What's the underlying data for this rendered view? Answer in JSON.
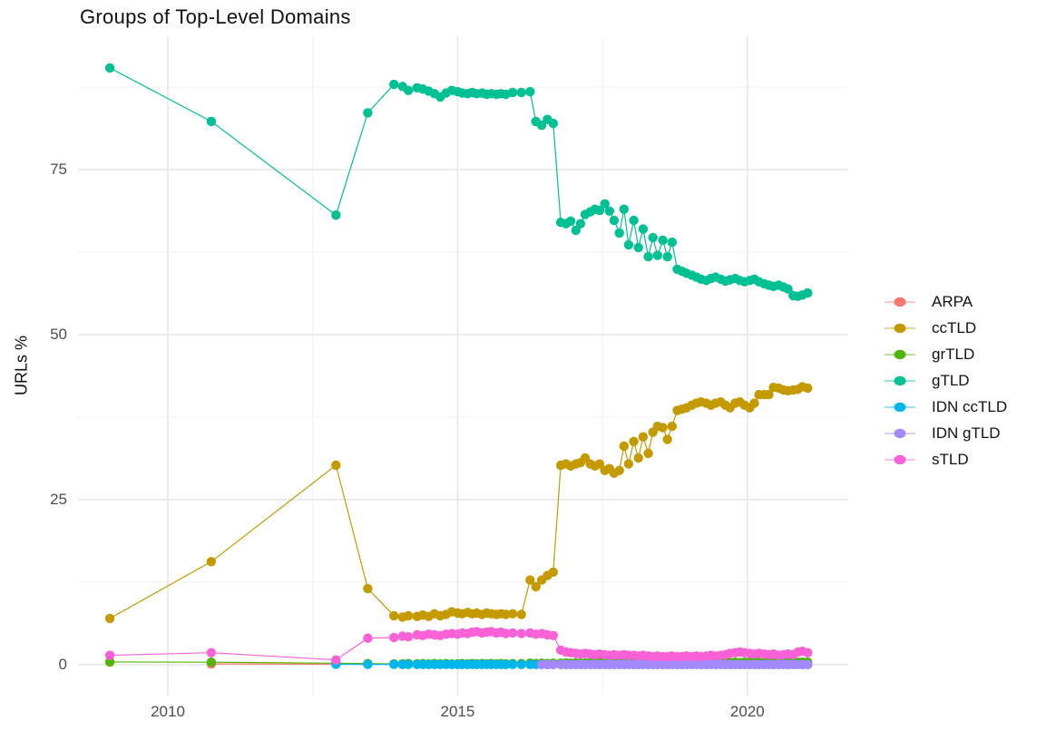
{
  "title": "Groups of Top-Level Domains",
  "chart_data": {
    "type": "line",
    "title": "Groups of Top-Level Domains",
    "xlabel": "",
    "ylabel": "URLs %",
    "x_tick_labels": [
      "2010",
      "2015",
      "2020"
    ],
    "x_ticks": [
      2010,
      2015,
      2020
    ],
    "y_tick_labels": [
      "0",
      "25",
      "50",
      "75"
    ],
    "y_ticks": [
      0,
      25,
      50,
      75
    ],
    "xlim": [
      2008.45,
      2021.74
    ],
    "ylim": [
      -4.7,
      95.2
    ],
    "grid": "major+minor",
    "grid_major_color": "#e9e9e9",
    "grid_minor_color": "#f4f4f4",
    "legend_position": "right",
    "x": [
      2009.0,
      2010.75,
      2012.9,
      2013.45,
      2013.9,
      2014.05,
      2014.15,
      2014.3,
      2014.4,
      2014.5,
      2014.6,
      2014.7,
      2014.8,
      2014.9,
      2015.0,
      2015.08,
      2015.17,
      2015.25,
      2015.33,
      2015.42,
      2015.5,
      2015.58,
      2015.67,
      2015.75,
      2015.83,
      2015.95,
      2016.1,
      2016.25,
      2016.35,
      2016.45,
      2016.55,
      2016.65,
      2016.78,
      2016.87,
      2016.95,
      2017.04,
      2017.12,
      2017.2,
      2017.29,
      2017.37,
      2017.45,
      2017.54,
      2017.62,
      2017.7,
      2017.79,
      2017.87,
      2017.95,
      2018.04,
      2018.12,
      2018.2,
      2018.29,
      2018.37,
      2018.45,
      2018.54,
      2018.62,
      2018.7,
      2018.79,
      2018.87,
      2018.95,
      2019.04,
      2019.12,
      2019.2,
      2019.29,
      2019.37,
      2019.45,
      2019.54,
      2019.62,
      2019.7,
      2019.79,
      2019.87,
      2019.95,
      2020.04,
      2020.12,
      2020.2,
      2020.29,
      2020.37,
      2020.45,
      2020.54,
      2020.62,
      2020.7,
      2020.79,
      2020.87,
      2020.95,
      2021.04
    ],
    "series": [
      {
        "name": "ARPA",
        "color": "#F8766D",
        "values": [
          null,
          0.1,
          0.05,
          null,
          null,
          null,
          null,
          null,
          null,
          null,
          null,
          null,
          null,
          null,
          null,
          null,
          null,
          null,
          null,
          null,
          null,
          null,
          null,
          null,
          null,
          null,
          null,
          null,
          null,
          null,
          null,
          null,
          null,
          null,
          null,
          null,
          null,
          null,
          null,
          null,
          null,
          null,
          null,
          null,
          null,
          null,
          null,
          null,
          null,
          null,
          null,
          null,
          null,
          null,
          null,
          null,
          null,
          null,
          null,
          null,
          null,
          null,
          null,
          null,
          null,
          null,
          null,
          null,
          null,
          null,
          null,
          null,
          null,
          null,
          null,
          null,
          null,
          null,
          null,
          null,
          null,
          null,
          null,
          null
        ]
      },
      {
        "name": "ccTLD",
        "color": "#C49A00",
        "values": [
          7.0,
          15.6,
          30.2,
          11.5,
          7.4,
          7.2,
          7.4,
          7.3,
          7.5,
          7.3,
          7.7,
          7.4,
          7.6,
          8.0,
          7.8,
          7.7,
          7.9,
          7.7,
          7.8,
          7.6,
          7.8,
          7.7,
          7.6,
          7.7,
          7.6,
          7.7,
          7.6,
          12.8,
          11.8,
          12.8,
          13.5,
          14.0,
          30.2,
          30.4,
          30.1,
          30.4,
          30.6,
          31.3,
          30.4,
          30.1,
          30.4,
          29.4,
          29.7,
          29.0,
          29.4,
          33.1,
          30.4,
          33.8,
          31.3,
          34.5,
          32.0,
          35.2,
          36.1,
          35.9,
          34.1,
          36.1,
          38.5,
          38.7,
          38.9,
          39.3,
          39.6,
          39.8,
          39.6,
          39.3,
          39.6,
          39.8,
          39.3,
          38.9,
          39.6,
          39.8,
          39.3,
          38.9,
          39.6,
          40.9,
          40.9,
          40.9,
          42.0,
          41.9,
          41.6,
          41.5,
          41.6,
          41.7,
          42.1,
          41.9
        ]
      },
      {
        "name": "grTLD",
        "color": "#53B400",
        "values": [
          0.4,
          0.35,
          0.2,
          0.15,
          0.1,
          0.1,
          0.15,
          0.1,
          0.15,
          0.1,
          0.15,
          0.1,
          0.15,
          0.1,
          0.1,
          0.15,
          0.1,
          0.15,
          0.1,
          0.15,
          0.1,
          0.15,
          0.1,
          0.15,
          0.1,
          0.15,
          0.15,
          0.2,
          0.15,
          0.2,
          0.15,
          0.2,
          0.2,
          0.25,
          0.2,
          0.25,
          0.2,
          0.25,
          0.3,
          0.25,
          0.3,
          0.25,
          0.3,
          0.25,
          0.3,
          0.25,
          0.3,
          0.3,
          0.25,
          0.3,
          0.35,
          0.3,
          0.35,
          0.3,
          0.35,
          0.3,
          0.35,
          0.3,
          0.35,
          0.3,
          0.35,
          0.3,
          0.35,
          0.3,
          0.35,
          0.3,
          0.35,
          0.3,
          0.35,
          0.3,
          0.35,
          0.35,
          0.3,
          0.35,
          0.3,
          0.35,
          0.3,
          0.35,
          0.3,
          0.35,
          0.3,
          0.35,
          0.35,
          0.35
        ]
      },
      {
        "name": "gTLD",
        "color": "#00C094",
        "values": [
          90.4,
          82.3,
          68.1,
          83.6,
          87.9,
          87.6,
          87.0,
          87.4,
          87.2,
          86.9,
          86.5,
          86.0,
          86.6,
          87.0,
          86.8,
          86.6,
          86.5,
          86.7,
          86.5,
          86.6,
          86.4,
          86.5,
          86.4,
          86.5,
          86.4,
          86.7,
          86.7,
          86.8,
          82.3,
          81.7,
          82.6,
          82.0,
          67.0,
          66.8,
          67.2,
          65.8,
          66.8,
          68.2,
          68.6,
          69.0,
          68.8,
          69.8,
          68.7,
          67.3,
          65.4,
          69.0,
          63.6,
          67.3,
          63.2,
          66.0,
          61.8,
          64.7,
          62.0,
          64.3,
          61.8,
          64.0,
          59.9,
          59.6,
          59.3,
          59.0,
          58.7,
          58.4,
          58.2,
          58.5,
          58.7,
          58.4,
          58.1,
          58.3,
          58.5,
          58.2,
          58.0,
          58.2,
          58.4,
          58.0,
          57.7,
          57.5,
          57.3,
          57.5,
          57.2,
          56.9,
          55.9,
          55.8,
          56.0,
          56.3
        ]
      },
      {
        "name": "IDN ccTLD",
        "color": "#00B6EB",
        "values": [
          null,
          null,
          0.05,
          0.03,
          0.03,
          0.02,
          0.02,
          0.02,
          0.02,
          0.02,
          0.02,
          0.02,
          0.02,
          0.02,
          0.02,
          0.02,
          0.02,
          0.02,
          0.02,
          0.02,
          0.02,
          0.02,
          0.02,
          0.02,
          0.02,
          0.02,
          0.02,
          0.02,
          0.02,
          0.02,
          0.02,
          0.02,
          0.02,
          0.02,
          0.02,
          0.02,
          0.02,
          0.02,
          0.02,
          0.02,
          0.02,
          0.02,
          0.02,
          0.02,
          0.02,
          0.02,
          0.02,
          0.02,
          0.02,
          0.02,
          0.02,
          0.02,
          0.02,
          0.02,
          0.02,
          0.02,
          0.02,
          0.02,
          0.02,
          0.02,
          0.02,
          0.02,
          0.02,
          0.02,
          0.02,
          0.02,
          0.02,
          0.02,
          0.02,
          0.02,
          0.02,
          0.02,
          0.02,
          0.02,
          0.02,
          0.02,
          0.02,
          0.02,
          0.02,
          0.02,
          0.02,
          0.02,
          0.02,
          0.02
        ]
      },
      {
        "name": "IDN gTLD",
        "color": "#A58AFF",
        "values": [
          null,
          null,
          null,
          null,
          null,
          null,
          null,
          null,
          null,
          null,
          null,
          null,
          null,
          null,
          null,
          null,
          null,
          null,
          null,
          null,
          null,
          null,
          null,
          null,
          null,
          null,
          null,
          null,
          null,
          0.0,
          0.0,
          0.0,
          0.0,
          0.0,
          0.0,
          0.0,
          0.0,
          0.0,
          0.0,
          0.0,
          0.0,
          0.0,
          0.0,
          0.0,
          0.0,
          0.0,
          0.0,
          0.0,
          0.0,
          0.0,
          0.0,
          0.0,
          0.0,
          0.0,
          0.0,
          0.0,
          0.0,
          0.0,
          0.0,
          0.0,
          0.0,
          0.0,
          0.0,
          0.0,
          0.0,
          0.0,
          0.0,
          0.0,
          0.0,
          0.0,
          0.0,
          0.0,
          0.0,
          0.0,
          0.0,
          0.0,
          0.0,
          0.0,
          0.0,
          0.0,
          0.0,
          0.0,
          0.0,
          0.0
        ]
      },
      {
        "name": "sTLD",
        "color": "#FB61D7",
        "values": [
          1.4,
          1.8,
          0.7,
          4.0,
          4.1,
          4.3,
          4.2,
          4.5,
          4.4,
          4.6,
          4.5,
          4.4,
          4.6,
          4.7,
          4.6,
          4.8,
          4.7,
          4.9,
          5.0,
          4.8,
          4.9,
          5.0,
          4.8,
          4.9,
          4.7,
          4.8,
          4.7,
          4.8,
          4.6,
          4.7,
          4.5,
          4.4,
          2.2,
          1.9,
          1.8,
          1.7,
          1.6,
          1.7,
          1.6,
          1.5,
          1.6,
          1.5,
          1.4,
          1.5,
          1.4,
          1.5,
          1.4,
          1.4,
          1.3,
          1.4,
          1.3,
          1.2,
          1.3,
          1.2,
          1.2,
          1.3,
          1.2,
          1.2,
          1.3,
          1.2,
          1.3,
          1.2,
          1.3,
          1.4,
          1.3,
          1.4,
          1.5,
          1.7,
          1.8,
          1.9,
          1.8,
          1.7,
          1.6,
          1.7,
          1.6,
          1.5,
          1.6,
          1.4,
          1.5,
          1.6,
          1.5,
          1.9,
          2.0,
          1.8
        ]
      }
    ]
  }
}
